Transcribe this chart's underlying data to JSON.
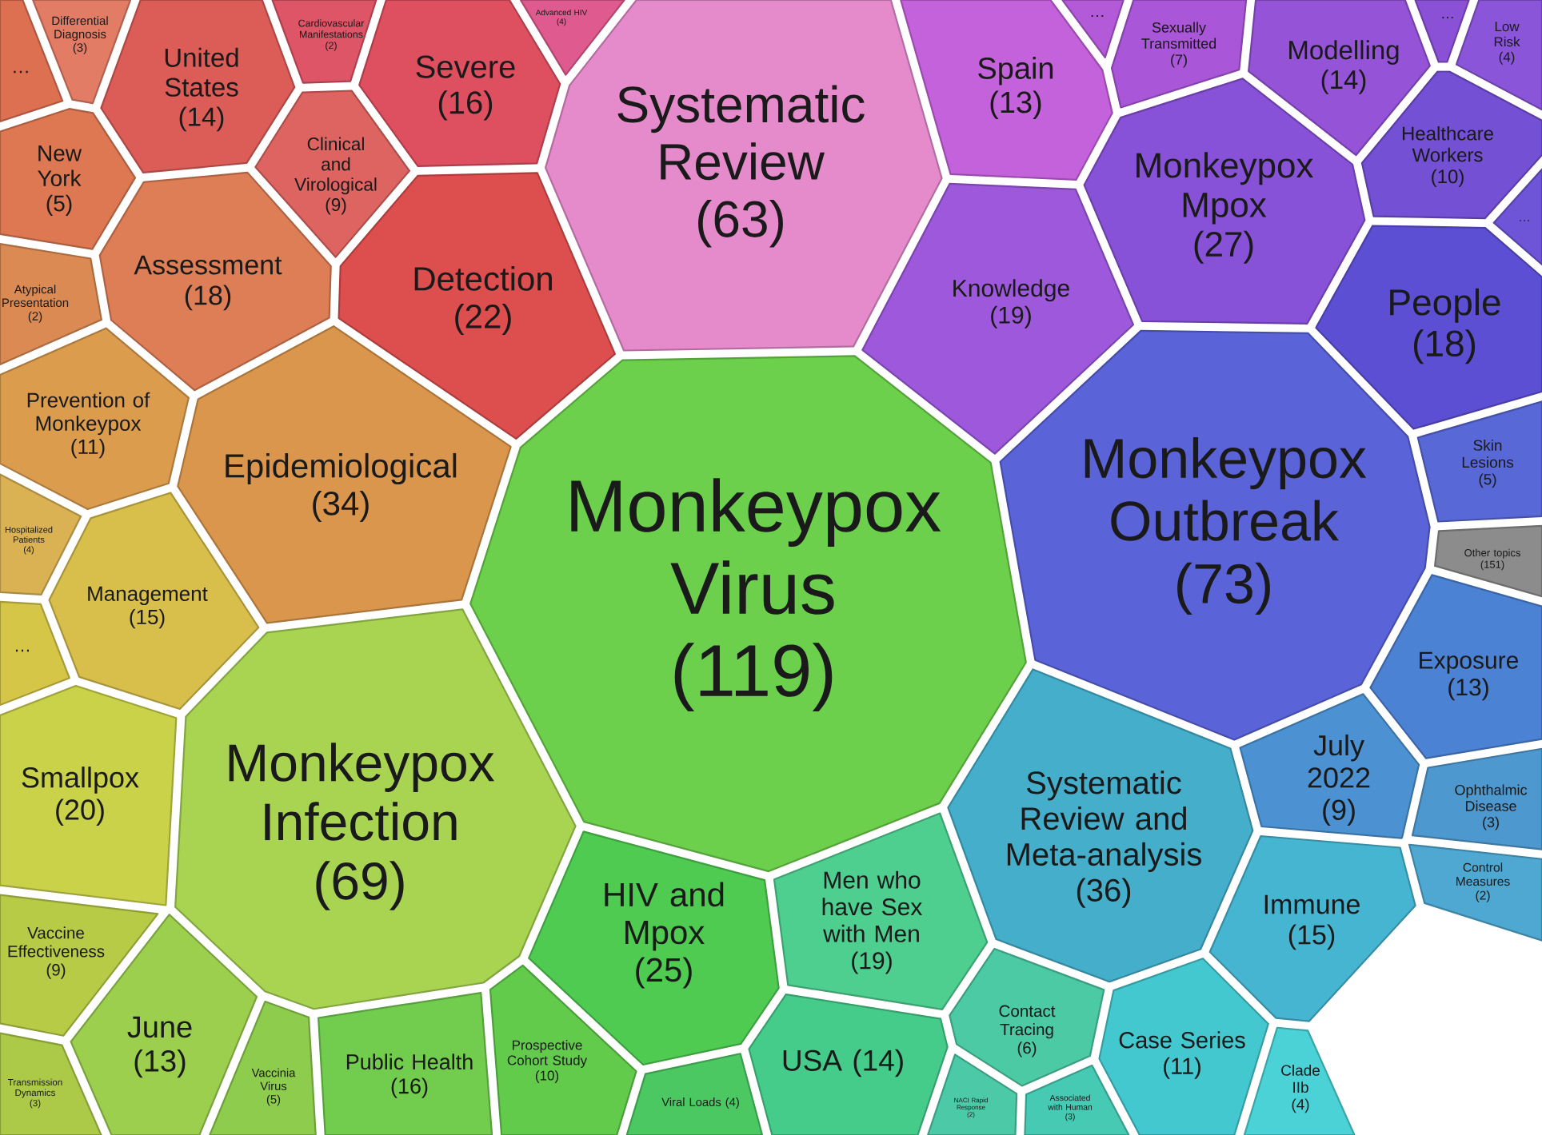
{
  "chart_data": {
    "type": "other",
    "categories": [
      "…",
      "Differential Diagnosis",
      "United States",
      "Cardiovascular Manifestations",
      "Severe",
      "Advanced HIV",
      "Systematic Review",
      "Spain",
      "…",
      "Sexually Transmitted",
      "Modelling",
      "…",
      "Low Risk",
      "Healthcare Workers",
      "…",
      "Monkeypox Mpox",
      "Knowledge",
      "People",
      "Monkeypox Outbreak",
      "Skin Lesions",
      "Other topics",
      "Exposure",
      "July 2022",
      "Ophthalmic Disease",
      "Control Measures",
      "Systematic Review and Meta-analysis",
      "Immune",
      "Case Series",
      "Clade IIb",
      "Associated with Human",
      "NACI Rapid Response",
      "Contact Tracing",
      "USA",
      "Men who have Sex with Men",
      "Viral Loads",
      "HIV and Mpox",
      "Prospective Cohort Study",
      "Public Health",
      "Vaccinia Virus",
      "June",
      "Transmission Dynamics",
      "Vaccine Effectiveness",
      "Monkeypox Infection",
      "Smallpox",
      "…",
      "Management",
      "Hospitalized Patients",
      "Prevention of Monkeypox",
      "Epidemiological",
      "Atypical Presentation",
      "New York",
      "Assessment",
      "Clinical and Virological",
      "Detection",
      "Monkeypox Virus"
    ],
    "values": [
      null,
      3,
      14,
      2,
      16,
      4,
      63,
      13,
      null,
      7,
      14,
      null,
      4,
      10,
      null,
      27,
      19,
      18,
      73,
      5,
      151,
      13,
      9,
      3,
      2,
      36,
      15,
      11,
      4,
      3,
      2,
      6,
      14,
      19,
      4,
      25,
      10,
      16,
      5,
      13,
      3,
      9,
      69,
      20,
      null,
      15,
      4,
      11,
      34,
      2,
      5,
      18,
      9,
      22,
      119
    ],
    "value_labels": [
      null,
      "(3)",
      "(14)",
      "(2)",
      "(16)",
      "(4)",
      "(63)",
      "(13)",
      null,
      "(7)",
      "(14)",
      null,
      "(4)",
      "(10)",
      null,
      "(27)",
      "(19)",
      "(18)",
      "(73)",
      "(5)",
      "(151)",
      "(13)",
      "(9)",
      "(3)",
      "(2)",
      "(36)",
      "(15)",
      "(11)",
      "(4)",
      "(3)",
      "(2)",
      "(6)",
      "(14)",
      "(19)",
      "(4)",
      "(25)",
      "(10)",
      "(16)",
      "(5)",
      "(13)",
      "(3)",
      "(9)",
      "(69)",
      "(20)",
      null,
      "(15)",
      "(4)",
      "(11)",
      "(34)",
      "(2)",
      "(5)",
      "(18)",
      "(9)",
      "(22)",
      "(119)"
    ],
    "colors": [
      "#de7052",
      "#e27c65",
      "#dc5c58",
      "#dd5566",
      "#de5060",
      "#df5a8e",
      "#e58bcb",
      "#c462dc",
      "#b35ad9",
      "#a956d8",
      "#9553d8",
      "#8a50d6",
      "#8b55da",
      "#7350d4",
      "#6e55d8",
      "#8852d8",
      "#9d58dc",
      "#5c4fd4",
      "#5a63d8",
      "#5868d6",
      "#8c8c8c",
      "#4c82d4",
      "#4c92d2",
      "#4e98d0",
      "#4ea8d2",
      "#44aecb",
      "#46b5d2",
      "#44c8cf",
      "#4ad2d6",
      "#46cab4",
      "#4ccaa8",
      "#4ccaa4",
      "#46cc8a",
      "#4ecf90",
      "#4cc862",
      "#4fcb52",
      "#62cb4c",
      "#72cc4e",
      "#8ecc4e",
      "#9ccf4e",
      "#acca48",
      "#b8cb46",
      "#a8d452",
      "#cad24a",
      "#d6c648",
      "#d8bf4c",
      "#dab254",
      "#db9c4e",
      "#da964c",
      "#da8a52",
      "#dd7852",
      "#de7e56",
      "#dd6460",
      "#dd4e4e",
      "#6dd04c"
    ]
  }
}
